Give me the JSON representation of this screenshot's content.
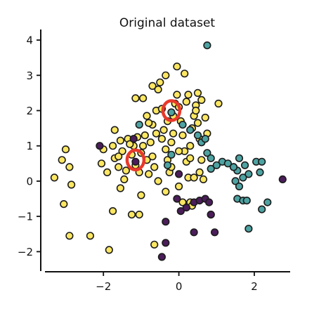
{
  "chart_data": {
    "type": "scatter",
    "title": "Original dataset",
    "xlabel": "",
    "ylabel": "",
    "xlim": [
      -3.55,
      2.95
    ],
    "ylim": [
      -2.55,
      4.3
    ],
    "xticks": [
      {
        "v": -2,
        "label": "−2"
      },
      {
        "v": 0,
        "label": "0"
      },
      {
        "v": 2,
        "label": "2"
      }
    ],
    "yticks": [
      {
        "v": -2,
        "label": "−2"
      },
      {
        "v": -1,
        "label": "−1"
      },
      {
        "v": 0,
        "label": "0"
      },
      {
        "v": 1,
        "label": "1"
      },
      {
        "v": 2,
        "label": "2"
      },
      {
        "v": 3,
        "label": "3"
      },
      {
        "v": 4,
        "label": "4"
      }
    ],
    "grid": false,
    "colors": {
      "yellow": "#fde762",
      "teal": "#4da3a2",
      "purple": "#4b1d5a",
      "highlight": "#e8392b"
    },
    "series": [
      {
        "color_key": "yellow",
        "points": [
          [
            -3.3,
            0.1
          ],
          [
            -3.1,
            0.6
          ],
          [
            -3.0,
            0.9
          ],
          [
            -2.9,
            0.4
          ],
          [
            -2.85,
            -0.1
          ],
          [
            -3.05,
            -0.65
          ],
          [
            -2.9,
            -1.55
          ],
          [
            -2.35,
            -1.55
          ],
          [
            -1.85,
            -1.95
          ],
          [
            -2.05,
            0.5
          ],
          [
            -2.0,
            0.9
          ],
          [
            -1.9,
            0.25
          ],
          [
            -1.75,
            1.0
          ],
          [
            -1.7,
            0.65
          ],
          [
            -1.6,
            0.4
          ],
          [
            -1.55,
            -0.2
          ],
          [
            -1.75,
            -0.85
          ],
          [
            -1.7,
            1.45
          ],
          [
            -1.55,
            1.15
          ],
          [
            -1.45,
            0.05
          ],
          [
            -1.4,
            0.3
          ],
          [
            -1.35,
            1.2
          ],
          [
            -1.25,
            0.75
          ],
          [
            -1.2,
            1.0
          ],
          [
            -1.15,
            0.45
          ],
          [
            -1.1,
            1.25
          ],
          [
            -1.05,
            0.25
          ],
          [
            -1.0,
            0.8
          ],
          [
            -0.95,
            1.0
          ],
          [
            -0.9,
            1.3
          ],
          [
            -0.85,
            0.6
          ],
          [
            -0.8,
            0.2
          ],
          [
            -0.75,
            1.1
          ],
          [
            -0.7,
            0.7
          ],
          [
            -0.65,
            0.4
          ],
          [
            -1.0,
            -0.4
          ],
          [
            -1.05,
            -0.95
          ],
          [
            -1.25,
            -0.95
          ],
          [
            -0.65,
            -1.8
          ],
          [
            -1.15,
            2.35
          ],
          [
            -0.95,
            2.35
          ],
          [
            -0.85,
            1.85
          ],
          [
            -0.7,
            1.6
          ],
          [
            -0.6,
            2.0
          ],
          [
            -0.55,
            2.6
          ],
          [
            -0.5,
            2.8
          ],
          [
            -0.45,
            1.2
          ],
          [
            -0.4,
            1.45
          ],
          [
            -0.35,
            0.9
          ],
          [
            -0.3,
            0.6
          ],
          [
            -0.25,
            0.25
          ],
          [
            -0.2,
            1.1
          ],
          [
            -0.15,
            1.85
          ],
          [
            -0.1,
            2.2
          ],
          [
            -0.05,
            2.45
          ],
          [
            0.0,
            2.1
          ],
          [
            0.05,
            1.7
          ],
          [
            0.1,
            1.3
          ],
          [
            0.15,
            0.85
          ],
          [
            0.2,
            0.55
          ],
          [
            0.25,
            0.1
          ],
          [
            0.3,
            1.0
          ],
          [
            0.35,
            1.5
          ],
          [
            0.4,
            1.85
          ],
          [
            0.45,
            2.15
          ],
          [
            0.5,
            2.5
          ],
          [
            0.55,
            1.2
          ],
          [
            0.6,
            0.6
          ],
          [
            0.65,
            0.05
          ],
          [
            0.7,
            1.8
          ],
          [
            0.75,
            1.35
          ],
          [
            1.05,
            2.2
          ],
          [
            -0.35,
            3.0
          ],
          [
            -0.05,
            3.25
          ],
          [
            0.15,
            3.05
          ],
          [
            -0.55,
            0.0
          ],
          [
            -0.35,
            -0.3
          ],
          [
            0.0,
            -0.15
          ],
          [
            0.1,
            -0.6
          ],
          [
            0.3,
            -0.6
          ],
          [
            0.35,
            -0.7
          ],
          [
            0.45,
            2.0
          ],
          [
            0.2,
            2.25
          ],
          [
            0.25,
            2.45
          ],
          [
            -0.2,
            0.4
          ],
          [
            0.6,
            1.1
          ],
          [
            0.55,
            0.25
          ],
          [
            0.4,
            0.1
          ],
          [
            0.0,
            0.85
          ],
          [
            -0.3,
            1.7
          ],
          [
            -0.45,
            2.05
          ],
          [
            -0.6,
            1.35
          ],
          [
            -0.8,
            1.65
          ],
          [
            -1.3,
            1.05
          ],
          [
            -1.5,
            0.85
          ],
          [
            -1.6,
            0.7
          ],
          [
            -0.7,
            2.7
          ],
          [
            0.3,
            0.65
          ],
          [
            0.5,
            1.65
          ],
          [
            -0.15,
            1.35
          ],
          [
            0.6,
            2.3
          ]
        ]
      },
      {
        "color_key": "teal",
        "points": [
          [
            0.75,
            3.85
          ],
          [
            0.1,
            1.6
          ],
          [
            0.3,
            1.45
          ],
          [
            0.5,
            1.3
          ],
          [
            0.6,
            1.1
          ],
          [
            0.75,
            0.8
          ],
          [
            0.85,
            0.65
          ],
          [
            0.7,
            1.2
          ],
          [
            -0.2,
            1.95
          ],
          [
            -0.2,
            0.75
          ],
          [
            -0.3,
            0.45
          ],
          [
            0.85,
            0.35
          ],
          [
            1.0,
            0.45
          ],
          [
            1.15,
            0.55
          ],
          [
            1.3,
            0.5
          ],
          [
            1.45,
            0.4
          ],
          [
            1.55,
            0.3
          ],
          [
            1.75,
            0.45
          ],
          [
            1.6,
            0.65
          ],
          [
            1.85,
            0.2
          ],
          [
            1.5,
            0.0
          ],
          [
            1.6,
            -0.15
          ],
          [
            1.7,
            0.1
          ],
          [
            1.55,
            -0.5
          ],
          [
            1.7,
            -0.55
          ],
          [
            1.8,
            -0.55
          ],
          [
            2.05,
            0.55
          ],
          [
            2.2,
            0.55
          ],
          [
            2.15,
            0.25
          ],
          [
            2.35,
            -0.6
          ],
          [
            2.2,
            -0.8
          ],
          [
            1.85,
            -1.35
          ],
          [
            1.45,
            0.4
          ],
          [
            0.85,
            -0.95
          ],
          [
            -1.05,
            1.6
          ]
        ]
      },
      {
        "color_key": "purple",
        "points": [
          [
            -2.1,
            1.0
          ],
          [
            -1.15,
            0.55
          ],
          [
            0.0,
            0.2
          ],
          [
            -0.05,
            -0.5
          ],
          [
            0.05,
            -0.85
          ],
          [
            0.2,
            -0.75
          ],
          [
            0.4,
            -0.6
          ],
          [
            0.55,
            -0.55
          ],
          [
            0.7,
            -0.5
          ],
          [
            0.85,
            -0.95
          ],
          [
            0.95,
            -1.45
          ],
          [
            0.4,
            -1.45
          ],
          [
            -0.35,
            -1.15
          ],
          [
            -0.35,
            -1.75
          ],
          [
            -0.45,
            -2.15
          ],
          [
            2.75,
            0.05
          ],
          [
            -1.2,
            1.2
          ],
          [
            0.8,
            -0.6
          ]
        ]
      }
    ],
    "highlights": [
      [
        -1.15,
        0.6
      ],
      [
        -0.2,
        2.0
      ]
    ]
  }
}
